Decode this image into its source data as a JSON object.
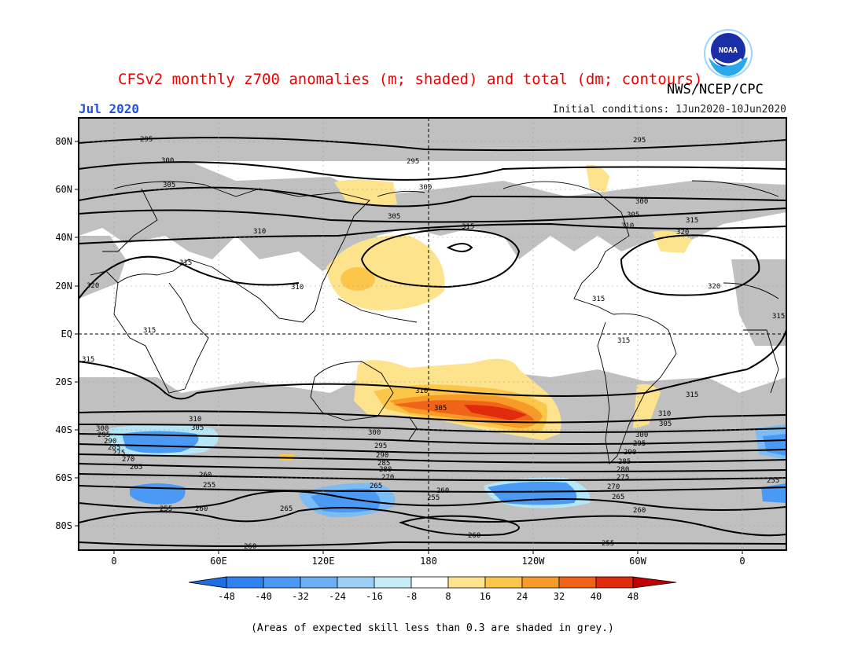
{
  "header": {
    "title": "CFSv2 monthly z700 anomalies (m; shaded) and total (dm; contours)",
    "agency": "NWS/NCEP/CPC",
    "month": "Jul 2020",
    "initial_conditions": "Initial conditions: 1Jun2020-10Jun2020",
    "logo_text": "NOAA"
  },
  "axes": {
    "lat_labels": [
      "80N",
      "60N",
      "40N",
      "20N",
      "EQ",
      "20S",
      "40S",
      "60S",
      "80S"
    ],
    "lon_labels": [
      "0",
      "60E",
      "120E",
      "180",
      "120W",
      "60W",
      "0"
    ]
  },
  "colorbar": {
    "labels": [
      "-48",
      "-40",
      "-32",
      "-24",
      "-16",
      "-8",
      "8",
      "16",
      "24",
      "32",
      "40",
      "48"
    ],
    "colors": [
      "#1e6ee6",
      "#2f83f0",
      "#4a9af5",
      "#7cbcf5",
      "#b4e6f8",
      "#ffffff",
      "#fde38c",
      "#fbc64a",
      "#f79a28",
      "#f06418",
      "#e02c0c",
      "#c00000"
    ]
  },
  "map": {
    "land_mask_color": "#c0c0c0",
    "contour_labels": [
      "295",
      "300",
      "305",
      "310",
      "315",
      "320",
      "255",
      "260",
      "265",
      "270",
      "275",
      "280",
      "285",
      "290"
    ]
  },
  "footer": {
    "note": "(Areas of expected skill less than 0.3 are shaded in grey.)"
  }
}
